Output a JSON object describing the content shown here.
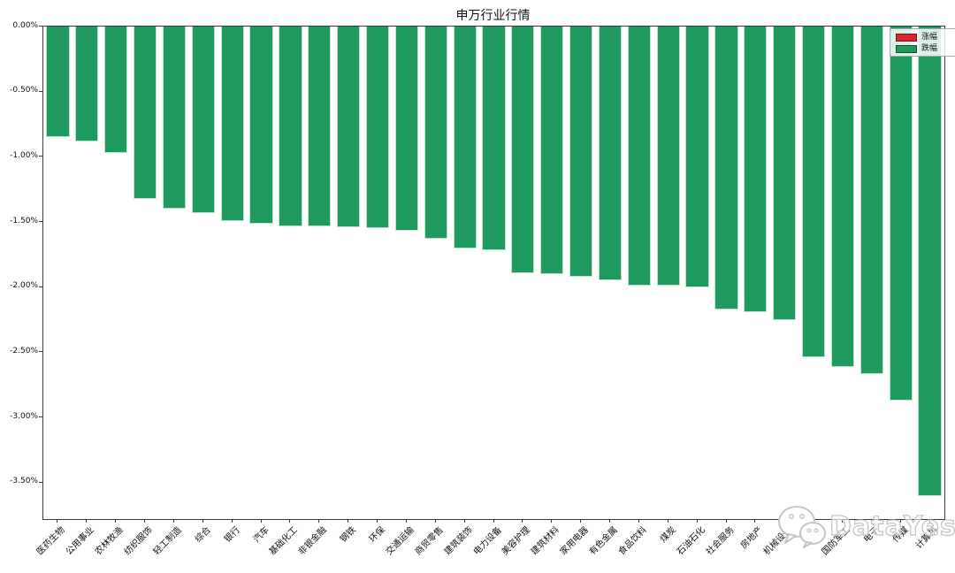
{
  "title": "申万行业行情",
  "legend": {
    "items": [
      {
        "label": "涨幅",
        "color": "#d7272f"
      },
      {
        "label": "跌幅",
        "color": "#1f9a5e"
      }
    ]
  },
  "watermark": {
    "label": "DataYes",
    "icon": "wechat-icon"
  },
  "chart_data": {
    "type": "bar",
    "title": "申万行业行情",
    "categories": [
      "医药生物",
      "公用事业",
      "农林牧渔",
      "纺织服饰",
      "轻工制造",
      "综合",
      "银行",
      "汽车",
      "基础化工",
      "非银金融",
      "钢铁",
      "环保",
      "交通运输",
      "商贸零售",
      "建筑装饰",
      "电力设备",
      "美容护理",
      "建筑材料",
      "家用电器",
      "有色金属",
      "食品饮料",
      "煤炭",
      "石油石化",
      "社会服务",
      "房地产",
      "机械设备",
      "通信",
      "国防军工",
      "电子",
      "传媒",
      "计算机"
    ],
    "series": [
      {
        "name": "跌幅",
        "values": [
          -0.85,
          -0.88,
          -0.97,
          -1.32,
          -1.4,
          -1.43,
          -1.49,
          -1.51,
          -1.53,
          -1.53,
          -1.54,
          -1.55,
          -1.57,
          -1.63,
          -1.7,
          -1.72,
          -1.89,
          -1.9,
          -1.92,
          -1.95,
          -1.99,
          -1.99,
          -2.0,
          -2.17,
          -2.19,
          -2.25,
          -2.54,
          -2.61,
          -2.67,
          -2.87,
          -3.6
        ]
      }
    ],
    "xlabel": "",
    "ylabel": "",
    "unit": "%",
    "ylim": [
      -3.78,
      0
    ],
    "ytick_values": [
      0,
      -0.5,
      -1,
      -1.5,
      -2,
      -2.5,
      -3,
      -3.5
    ],
    "ytick_labels": [
      "0.00%",
      "-0.50%",
      "-1.00%",
      "-1.50%",
      "-2.00%",
      "-2.50%",
      "-3.00%",
      "-3.50%"
    ],
    "bar_color": "#1f9a5e",
    "bar_edge_color": "#bfe3d0",
    "up_color": "#d7272f",
    "grid": false,
    "legend_position": "upper right",
    "x_label_rotation": 45
  }
}
